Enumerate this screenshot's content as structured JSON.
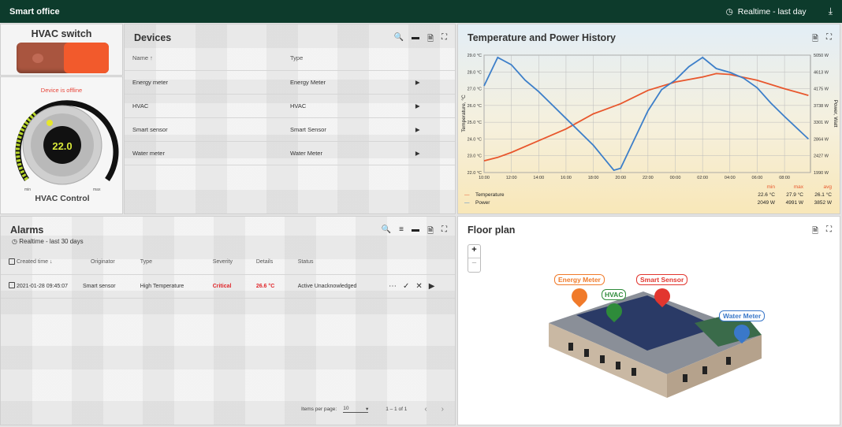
{
  "header": {
    "title": "Smart office",
    "timewindow": "Realtime - last day",
    "icons": [
      "clock-icon",
      "download-icon"
    ]
  },
  "hvac_switch": {
    "title": "HVAC switch",
    "state": "on"
  },
  "hvac_control": {
    "title": "HVAC Control",
    "status": "Device is offline",
    "value": "22.0",
    "min_label": "min",
    "max_label": "max"
  },
  "devices": {
    "title": "Devices",
    "columns": [
      "Name",
      "Type"
    ],
    "sort_indicator": "↑",
    "rows": [
      {
        "name": "Energy meter",
        "type": "Energy Meter"
      },
      {
        "name": "HVAC",
        "type": "HVAC"
      },
      {
        "name": "Smart sensor",
        "type": "Smart Sensor"
      },
      {
        "name": "Water meter",
        "type": "Water Meter"
      }
    ]
  },
  "chart": {
    "title": "Temperature and Power History",
    "stats_headers": [
      "min",
      "max",
      "avg"
    ],
    "legend": [
      {
        "name": "Temperature",
        "min": "22.6 °C",
        "max": "27.9 °C",
        "avg": "26.1 °C"
      },
      {
        "name": "Power",
        "min": "2049 W",
        "max": "4991 W",
        "avg": "3852 W"
      }
    ]
  },
  "chart_data": {
    "type": "line",
    "ylabel": "Temperature, °C",
    "y2label": "Power, Watt",
    "x_ticks": [
      "10:00",
      "12:00",
      "14:00",
      "16:00",
      "18:00",
      "20:00",
      "22:00",
      "00:00",
      "02:00",
      "04:00",
      "06:00",
      "08:00"
    ],
    "ylim": [
      22,
      29
    ],
    "y_ticks": [
      "22.0 °C",
      "23.0 °C",
      "24.0 °C",
      "25.0 °C",
      "26.0 °C",
      "27.0 °C",
      "28.0 °C",
      "29.0 °C"
    ],
    "y2lim": [
      1990,
      5050
    ],
    "y2_ticks": [
      "1990 W",
      "2427 W",
      "2864 W",
      "3301 W",
      "3738 W",
      "4175 W",
      "4613 W",
      "5050 W"
    ],
    "grid": true,
    "legend_position": "bottom-left",
    "series": [
      {
        "name": "Temperature",
        "color": "#e8572d",
        "axis": "left",
        "x": [
          "10:00",
          "11:00",
          "12:00",
          "14:00",
          "16:00",
          "18:00",
          "20:00",
          "22:00",
          "00:00",
          "02:00",
          "03:00",
          "04:00",
          "06:00",
          "08:00",
          "09:45"
        ],
        "y": [
          22.7,
          22.9,
          23.2,
          23.9,
          24.6,
          25.5,
          26.1,
          26.9,
          27.4,
          27.7,
          27.9,
          27.85,
          27.5,
          27.0,
          26.6
        ]
      },
      {
        "name": "Power",
        "color": "#3d7fc9",
        "axis": "right",
        "x": [
          "10:00",
          "11:00",
          "12:00",
          "13:00",
          "14:00",
          "16:00",
          "18:00",
          "19:30",
          "20:00",
          "21:00",
          "22:00",
          "23:00",
          "00:00",
          "01:00",
          "02:00",
          "03:00",
          "04:00",
          "05:00",
          "06:00",
          "07:00",
          "08:00",
          "09:45"
        ],
        "y": [
          4250,
          4991,
          4800,
          4400,
          4100,
          3400,
          2700,
          2049,
          2100,
          2850,
          3600,
          4150,
          4400,
          4750,
          4991,
          4700,
          4600,
          4450,
          4200,
          3800,
          3450,
          2864
        ]
      }
    ]
  },
  "alarms": {
    "title": "Alarms",
    "timewindow": "Realtime - last 30 days",
    "columns": [
      "Created time",
      "Originator",
      "Type",
      "Severity",
      "Details",
      "Status"
    ],
    "sort_indicator": "↓",
    "rows": [
      {
        "created": "2021-01-28 09:45:07",
        "originator": "Smart sensor",
        "type": "High Temperature",
        "severity": "Critical",
        "details": "26.6 °C",
        "status": "Active Unacknowledged"
      }
    ],
    "severity_color": "#e0262a",
    "paginator": {
      "label": "Items per page:",
      "page_size": "10",
      "range": "1 – 1 of 1"
    }
  },
  "floorplan": {
    "title": "Floor plan",
    "zoom_in": "+",
    "zoom_out": "−",
    "markers": [
      {
        "label": "Energy Meter",
        "color": "#f07a2a"
      },
      {
        "label": "HVAC",
        "color": "#2e8b3a"
      },
      {
        "label": "Smart Sensor",
        "color": "#e2362f"
      },
      {
        "label": "Water Meter",
        "color": "#3a78c9"
      }
    ]
  }
}
